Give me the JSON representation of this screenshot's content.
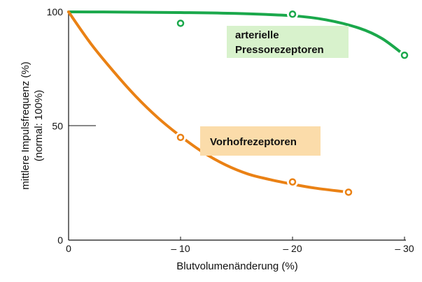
{
  "chart_data": {
    "type": "line",
    "title": "",
    "xlabel": "Blutvolumenänderung (%)",
    "ylabel_lines": [
      "mittlere Impulsfrequenz (%)",
      "(normal: 100%)"
    ],
    "xlim": [
      0,
      -30
    ],
    "ylim": [
      0,
      100
    ],
    "x_ticks": [
      0,
      -10,
      -20,
      -30
    ],
    "x_tick_labels": [
      "0",
      "– 10",
      "– 20",
      "– 30"
    ],
    "y_ticks": [
      0,
      50,
      100
    ],
    "y_tick_labels": [
      "0",
      "50",
      "100"
    ],
    "grid": false,
    "series": [
      {
        "name": "arterielle Pressorezeptoren",
        "label_lines": [
          "arterielle",
          "Pressorezeptoren"
        ],
        "color": "#1aa84b",
        "label_bg": "#d8f2cc",
        "points": [
          {
            "x": -10,
            "y": 95
          },
          {
            "x": -20,
            "y": 99
          },
          {
            "x": -30,
            "y": 81
          }
        ],
        "curve": [
          {
            "x": 0,
            "y": 100
          },
          {
            "x": -5,
            "y": 99.9
          },
          {
            "x": -10,
            "y": 99.7
          },
          {
            "x": -15,
            "y": 99.3
          },
          {
            "x": -20,
            "y": 98.3
          },
          {
            "x": -23,
            "y": 96.5
          },
          {
            "x": -26,
            "y": 92.8
          },
          {
            "x": -28,
            "y": 88.3
          },
          {
            "x": -30,
            "y": 81
          }
        ]
      },
      {
        "name": "Vorhofrezeptoren",
        "label_lines": [
          "Vorhofrezeptoren"
        ],
        "color": "#ea8114",
        "label_bg": "#fbdcaa",
        "points": [
          {
            "x": -10,
            "y": 45
          },
          {
            "x": -20,
            "y": 25.5
          },
          {
            "x": -25,
            "y": 21
          }
        ],
        "curve": [
          {
            "x": 0,
            "y": 100
          },
          {
            "x": -2,
            "y": 86
          },
          {
            "x": -4,
            "y": 74
          },
          {
            "x": -6,
            "y": 63
          },
          {
            "x": -8,
            "y": 53.5
          },
          {
            "x": -10,
            "y": 45.5
          },
          {
            "x": -12,
            "y": 38.5
          },
          {
            "x": -14,
            "y": 33
          },
          {
            "x": -16,
            "y": 29
          },
          {
            "x": -18,
            "y": 26.5
          },
          {
            "x": -20,
            "y": 24.5
          },
          {
            "x": -22,
            "y": 22.8
          },
          {
            "x": -25,
            "y": 21
          }
        ]
      }
    ]
  }
}
